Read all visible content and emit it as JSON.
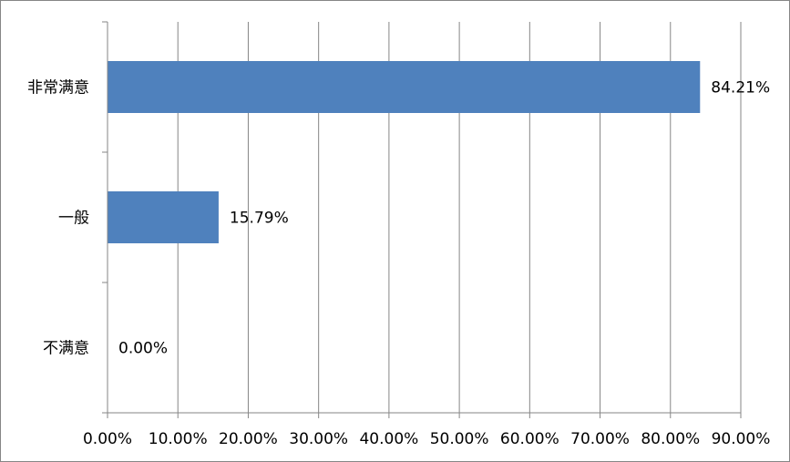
{
  "chart_data": {
    "type": "bar",
    "orientation": "horizontal",
    "categories": [
      "非常满意",
      "一般",
      "不满意"
    ],
    "values": [
      84.21,
      15.79,
      0.0
    ],
    "data_labels": [
      "84.21%",
      "15.79%",
      "0.00%"
    ],
    "xlim": [
      0,
      90
    ],
    "x_ticks": [
      0,
      10,
      20,
      30,
      40,
      50,
      60,
      70,
      80,
      90
    ],
    "x_tick_labels": [
      "0.00%",
      "10.00%",
      "20.00%",
      "30.00%",
      "40.00%",
      "50.00%",
      "60.00%",
      "70.00%",
      "80.00%",
      "90.00%"
    ],
    "title": "",
    "xlabel": "",
    "ylabel": "",
    "grid": "vertical",
    "legend": "none",
    "bar_color": "#4F81BD",
    "grid_color": "#868686"
  }
}
